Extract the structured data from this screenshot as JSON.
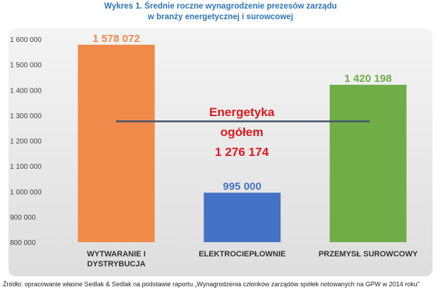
{
  "title_line1": "Wykres 1. Średnie roczne wynagrodzenie prezesów zarządu",
  "title_line2": "w branży energetycznej i surowcowej",
  "source": "Źródło: opracowanie własne Sedlak & Sedlak na podstawie raportu „Wynagrodzenia członków zarządów spółek notowanych na GPW w 2014 roku\"",
  "chart_data": {
    "type": "bar",
    "categories": [
      [
        "WYTWARANIE I",
        "DYSTRYBUCJA"
      ],
      [
        "ELEKTROCIEPŁOWNIE"
      ],
      [
        "PRZEMYSŁ SUROWCOWY"
      ]
    ],
    "values": [
      1578072,
      995000,
      1420198
    ],
    "value_labels": [
      "1 578 072",
      "995 000",
      "1 420 198"
    ],
    "colors": [
      "#f08a4b",
      "#4472c4",
      "#70ad47"
    ],
    "label_colors": [
      "#f08a4b",
      "#4472c4",
      "#70ad47"
    ],
    "ylim": [
      800000,
      1600000
    ],
    "yticks": [
      800000,
      900000,
      1000000,
      1100000,
      1200000,
      1300000,
      1400000,
      1500000,
      1600000
    ],
    "ytick_labels": [
      "800 000",
      "900 000",
      "1 000 000",
      "1 100 000",
      "1 200 000",
      "1 300 000",
      "1 400 000",
      "1 500 000",
      "1 600 000"
    ],
    "grid": false,
    "reference_line": {
      "value": 1276174,
      "color": "#44546a",
      "annotation": [
        "Energetyka",
        "ogółem",
        "1 276 174"
      ],
      "annotation_color": "#e0171e"
    }
  }
}
